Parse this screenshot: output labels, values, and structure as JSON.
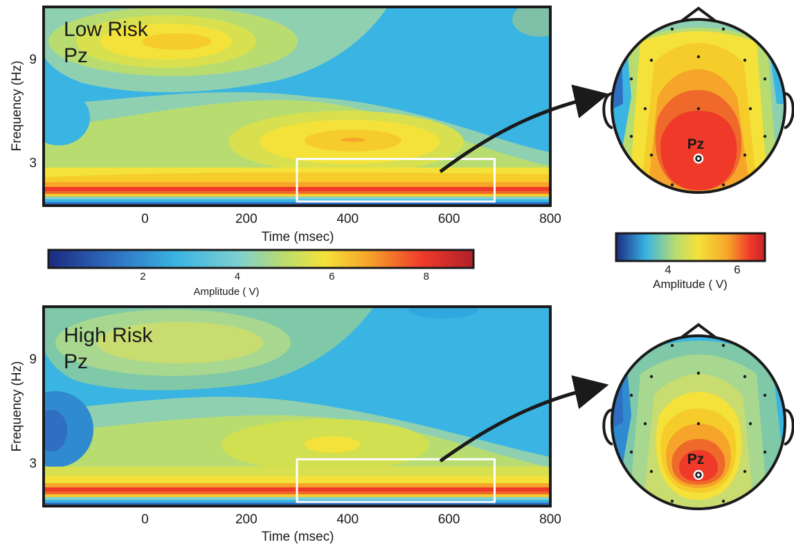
{
  "panels": [
    {
      "id": "low",
      "label_line1": "Low Risk",
      "label_line2": "Pz",
      "electrode_label": "Pz"
    },
    {
      "id": "high",
      "label_line1": "High Risk",
      "label_line2": "Pz",
      "electrode_label": "Pz"
    }
  ],
  "colors": {
    "colormap": [
      "#1a2a80",
      "#2f6ec0",
      "#3ab4e2",
      "#7fd0d0",
      "#b8dc70",
      "#f4e23a",
      "#f6a52a",
      "#ef3a2a",
      "#b0202a"
    ],
    "frame": "#1a1a1a",
    "roi_box": "#ffffff",
    "arrow": "#1a1a1a"
  },
  "chart_data": [
    {
      "type": "heatmap",
      "panel": "Low Risk Pz",
      "xlabel": "Time (msec)",
      "ylabel": "Frequency (Hz)",
      "xlim": [
        -200,
        800
      ],
      "ylim": [
        0.5,
        12
      ],
      "x_ticks": [
        0,
        200,
        400,
        600,
        800
      ],
      "y_ticks": [
        3,
        9
      ],
      "color_range": [
        0,
        9
      ],
      "roi": {
        "t_start": 300,
        "t_end": 690,
        "f_low": 0.5,
        "f_high": 3.2
      },
      "features": [
        {
          "t": 80,
          "f": 10.2,
          "amp": 5.8
        },
        {
          "t": 420,
          "f": 3.7,
          "amp": 6.3
        },
        {
          "t": 350,
          "f": 1.0,
          "amp": 8.6
        },
        {
          "t": -200,
          "f": 5.0,
          "amp": 3.4
        },
        {
          "t": 700,
          "f": 8.5,
          "amp": 3.6
        }
      ]
    },
    {
      "type": "heatmap",
      "panel": "High Risk Pz",
      "xlabel": "Time (msec)",
      "ylabel": "Frequency (Hz)",
      "xlim": [
        -200,
        800
      ],
      "ylim": [
        0.5,
        12
      ],
      "x_ticks": [
        0,
        200,
        400,
        600,
        800
      ],
      "y_ticks": [
        3,
        9
      ],
      "color_range": [
        0,
        9
      ],
      "roi": {
        "t_start": 300,
        "t_end": 690,
        "f_low": 0.5,
        "f_high": 3.2
      },
      "features": [
        {
          "t": 80,
          "f": 10.2,
          "amp": 5.2
        },
        {
          "t": 400,
          "f": 3.8,
          "amp": 5.7
        },
        {
          "t": 350,
          "f": 1.0,
          "amp": 8.4
        },
        {
          "t": -200,
          "f": 4.6,
          "amp": 2.4
        },
        {
          "t": 700,
          "f": 8.0,
          "amp": 3.2
        }
      ]
    }
  ],
  "colorbar_main": {
    "ticks": [
      2,
      4,
      6,
      8
    ],
    "range": [
      0,
      9
    ],
    "label": "Amplitude (   V)"
  },
  "colorbar_topo": {
    "ticks": [
      4,
      6
    ],
    "range": [
      2.5,
      6.8
    ],
    "label": "Amplitude (   V)"
  }
}
